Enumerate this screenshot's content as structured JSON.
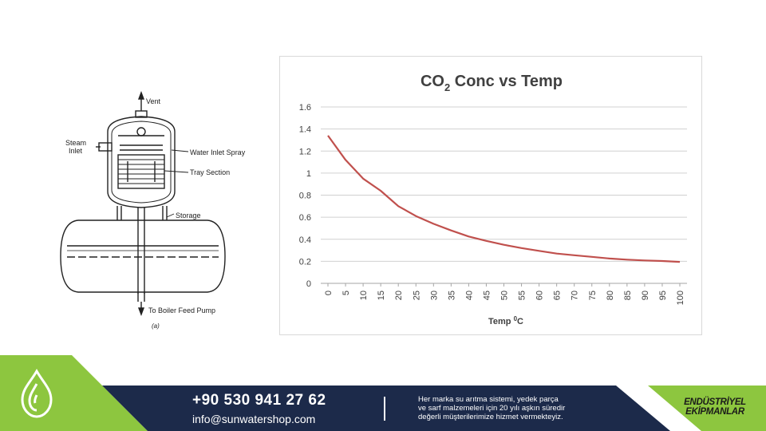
{
  "diagram": {
    "labels": {
      "vent": "Vent",
      "steam": "Steam",
      "inlet": "Inlet",
      "water_inlet_spray": "Water Inlet Spray",
      "tray_section": "Tray Section",
      "storage": "Storage",
      "boiler_feed": "To Boiler Feed Pump",
      "caption": "(a)"
    }
  },
  "chart_data": {
    "type": "line",
    "title_main": "CO",
    "title_sub": "2",
    "title_rest": " Conc vs Temp",
    "xlabel_main": "Temp ",
    "xlabel_sup": "0",
    "xlabel_rest": "C",
    "ylabel": "",
    "x": [
      0,
      5,
      10,
      15,
      20,
      25,
      30,
      35,
      40,
      45,
      50,
      55,
      60,
      65,
      70,
      75,
      80,
      85,
      90,
      95,
      100
    ],
    "x_tick_labels": [
      "0",
      "5",
      "10",
      "15",
      "20",
      "25",
      "30",
      "35",
      "40",
      "45",
      "50",
      "55",
      "60",
      "65",
      "70",
      "75",
      "80",
      "85",
      "90",
      "95",
      "100"
    ],
    "y_tick_labels": [
      "0",
      "0.2",
      "0.4",
      "0.6",
      "0.8",
      "1",
      "1.2",
      "1.4",
      "1.6"
    ],
    "y_ticks": [
      0,
      0.2,
      0.4,
      0.6,
      0.8,
      1.0,
      1.2,
      1.4,
      1.6
    ],
    "ylim": [
      0,
      1.6
    ],
    "xlim": [
      0,
      100
    ],
    "grid": true,
    "legend": "none",
    "series": [
      {
        "values": [
          1.34,
          1.12,
          0.95,
          0.84,
          0.7,
          0.61,
          0.54,
          0.48,
          0.425,
          0.385,
          0.35,
          0.32,
          0.295,
          0.27,
          0.255,
          0.24,
          0.225,
          0.215,
          0.208,
          0.203,
          0.195
        ],
        "color": "#c0504d"
      }
    ]
  },
  "footer": {
    "phone": "+90 530 941 27 62",
    "email": "info@sunwatershop.com",
    "tagline_lines": [
      "Her marka su arıtma sistemi, yedek parça",
      "ve sarf malzemeleri için 20 yılı aşkın süredir",
      "değerli müşterilerimize hizmet vermekteyiz."
    ],
    "brand_line1": "ENDÜSTRİYEL",
    "brand_line2": "EKİPMANLAR",
    "colors": {
      "navy": "#1c2a4a",
      "green": "#8dc63f",
      "dark_green": "#5e9e2c",
      "white": "#ffffff"
    }
  }
}
